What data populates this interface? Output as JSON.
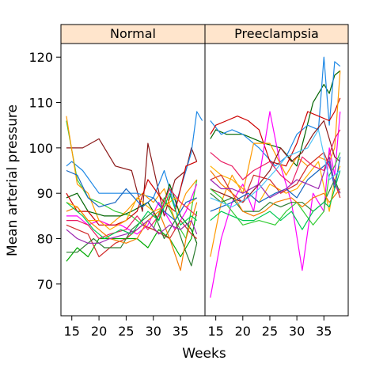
{
  "chart_data": {
    "type": "line",
    "xlabel": "Weeks",
    "ylabel": "Mean arterial pressure",
    "xlim": [
      13,
      39.5
    ],
    "ylim": [
      63,
      123
    ],
    "x_ticks": [
      15,
      20,
      25,
      30,
      35
    ],
    "y_ticks": [
      70,
      80,
      90,
      100,
      110,
      120
    ],
    "strip_color": "#ffe5cc",
    "panels": [
      {
        "name": "Normal",
        "series": [
          {
            "color": "#8b1a1a",
            "x": [
              14,
              17,
              20,
              23,
              26,
              28,
              29,
              32,
              34,
              36,
              37,
              38
            ],
            "y": [
              100,
              100,
              102,
              96,
              95,
              86,
              101,
              85,
              93,
              95,
              100,
              97
            ]
          },
          {
            "color": "#1e88e5",
            "x": [
              14,
              15,
              17,
              20,
              24,
              27,
              30,
              32,
              34,
              36,
              37,
              38,
              39
            ],
            "y": [
              96,
              97,
              95,
              90,
              90,
              90,
              89,
              95,
              87,
              95,
              99,
              108,
              106
            ]
          },
          {
            "color": "#33cc33",
            "x": [
              14,
              16,
              18,
              20,
              23,
              26,
              28,
              30,
              32,
              34,
              36,
              38
            ],
            "y": [
              106,
              93,
              89,
              88,
              86,
              85,
              83,
              82,
              89,
              84,
              80,
              93
            ]
          },
          {
            "color": "#ff9900",
            "x": [
              14,
              16,
              18,
              20,
              22,
              25,
              28,
              30,
              32,
              34,
              36,
              38
            ],
            "y": [
              107,
              92,
              90,
              84,
              83,
              86,
              90,
              88,
              91,
              84,
              90,
              93
            ]
          },
          {
            "color": "#006400",
            "x": [
              14,
              16,
              18,
              21,
              24,
              26,
              29,
              31,
              33,
              35,
              37,
              38
            ],
            "y": [
              89,
              90,
              86,
              85,
              85,
              86,
              88,
              84,
              92,
              85,
              82,
              79
            ]
          },
          {
            "color": "#ff00ff",
            "x": [
              14,
              16,
              18,
              20,
              22,
              24,
              27,
              29,
              31,
              34,
              36,
              38
            ],
            "y": [
              85,
              85,
              83,
              84,
              83,
              83,
              81,
              83,
              88,
              82,
              86,
              92
            ]
          },
          {
            "color": "#cc0000",
            "x": [
              14,
              16,
              18,
              20,
              23,
              25,
              27,
              29,
              32,
              34,
              36,
              38
            ],
            "y": [
              90,
              86,
              86,
              83,
              83,
              84,
              86,
              93,
              88,
              86,
              96,
              97
            ]
          },
          {
            "color": "#ffb000",
            "x": [
              14,
              16,
              18,
              20,
              22,
              25,
              27,
              30,
              32,
              34,
              36,
              38
            ],
            "y": [
              88,
              87,
              84,
              84,
              82,
              84,
              89,
              86,
              87,
              89,
              87,
              89
            ]
          },
          {
            "color": "#00aa00",
            "x": [
              14,
              16,
              18,
              20,
              23,
              25,
              27,
              29,
              31,
              33,
              35,
              37,
              38
            ],
            "y": [
              75,
              78,
              76,
              80,
              80,
              80,
              80,
              78,
              82,
              80,
              76,
              80,
              86
            ]
          },
          {
            "color": "#d12b2b",
            "x": [
              14,
              16,
              18,
              20,
              23,
              25,
              28,
              30,
              33,
              35,
              37,
              38
            ],
            "y": [
              83,
              82,
              81,
              76,
              79,
              80,
              83,
              82,
              80,
              84,
              81,
              80
            ]
          },
          {
            "color": "#1565c0",
            "x": [
              14,
              16,
              18,
              20,
              23,
              25,
              28,
              30,
              32,
              34,
              36,
              38
            ],
            "y": [
              95,
              94,
              89,
              87,
              88,
              91,
              87,
              89,
              86,
              84,
              88,
              89
            ]
          },
          {
            "color": "#e91e63",
            "x": [
              14,
              16,
              18,
              20,
              22,
              25,
              27,
              29,
              31,
              33,
              35,
              37,
              38
            ],
            "y": [
              84,
              84,
              83,
              80,
              81,
              82,
              85,
              82,
              85,
              91,
              88,
              86,
              85
            ]
          },
          {
            "color": "#2e7d32",
            "x": [
              14,
              16,
              19,
              21,
              24,
              26,
              28,
              30,
              32,
              34,
              36,
              37,
              38
            ],
            "y": [
              77,
              77,
              80,
              78,
              78,
              82,
              84,
              86,
              80,
              84,
              77,
              74,
              79
            ]
          },
          {
            "color": "#f57c00",
            "x": [
              14,
              16,
              18,
              20,
              22,
              25,
              27,
              29,
              31,
              33,
              35,
              36,
              38
            ],
            "y": [
              86,
              87,
              84,
              82,
              80,
              79,
              80,
              84,
              86,
              80,
              73,
              80,
              88
            ]
          },
          {
            "color": "#9c27b0",
            "x": [
              14,
              16,
              18,
              20,
              22,
              25,
              27,
              29,
              31,
              33,
              35,
              37,
              38
            ],
            "y": [
              82,
              80,
              79,
              79,
              80,
              81,
              82,
              84,
              81,
              83,
              82,
              84,
              81
            ]
          },
          {
            "color": "#00c853",
            "x": [
              14,
              17,
              19,
              21,
              24,
              26,
              29,
              31,
              33,
              35,
              37,
              38
            ],
            "y": [
              88,
              85,
              82,
              80,
              82,
              81,
              86,
              84,
              90,
              83,
              85,
              84
            ]
          }
        ]
      },
      {
        "name": "Preeclampsia",
        "series": [
          {
            "color": "#006400",
            "x": [
              14,
              15,
              17,
              20,
              24,
              27,
              30,
              33,
              35,
              36,
              37,
              38
            ],
            "y": [
              102,
              104,
              103,
              103,
              101,
              100,
              96,
              110,
              114,
              112,
              116,
              117
            ]
          },
          {
            "color": "#1e88e5",
            "x": [
              14,
              16,
              18,
              20,
              23,
              26,
              28,
              30,
              32,
              34,
              35,
              36,
              37,
              38
            ],
            "y": [
              106,
              103,
              104,
              103,
              100,
              96,
              98,
              103,
              105,
              104,
              120,
              105,
              119,
              118
            ]
          },
          {
            "color": "#cc0000",
            "x": [
              14,
              15,
              17,
              19,
              21,
              23,
              25,
              28,
              30,
              32,
              34,
              36,
              37,
              38
            ],
            "y": [
              103,
              105,
              106,
              107,
              106,
              104,
              97,
              96,
              101,
              108,
              107,
              106,
              108,
              111
            ]
          },
          {
            "color": "#ff00ff",
            "x": [
              14,
              16,
              18,
              20,
              22,
              25,
              27,
              29,
              31,
              33,
              35,
              36,
              37,
              38
            ],
            "y": [
              67,
              80,
              88,
              92,
              86,
              108,
              96,
              88,
              73,
              90,
              86,
              100,
              94,
              108
            ]
          },
          {
            "color": "#ff9900",
            "x": [
              14,
              16,
              18,
              20,
              22,
              25,
              28,
              30,
              32,
              34,
              36,
              37,
              38
            ],
            "y": [
              76,
              88,
              94,
              90,
              101,
              101,
              94,
              98,
              96,
              98,
              97,
              100,
              117
            ]
          },
          {
            "color": "#ffb000",
            "x": [
              14,
              16,
              18,
              21,
              23,
              25,
              28,
              30,
              32,
              34,
              36,
              37,
              38
            ],
            "y": [
              96,
              94,
              93,
              90,
              88,
              92,
              90,
              91,
              94,
              97,
              86,
              93,
              96
            ]
          },
          {
            "color": "#8b1a1a",
            "x": [
              14,
              16,
              18,
              20,
              23,
              25,
              27,
              29,
              31,
              33,
              35,
              37,
              38
            ],
            "y": [
              91,
              90,
              89,
              88,
              92,
              95,
              100,
              97,
              99,
              103,
              106,
              98,
              97
            ]
          },
          {
            "color": "#33cc33",
            "x": [
              14,
              16,
              18,
              20,
              23,
              26,
              28,
              30,
              33,
              35,
              36,
              37,
              38
            ],
            "y": [
              91,
              89,
              86,
              83,
              84,
              83,
              86,
              88,
              83,
              86,
              94,
              96,
              99
            ]
          },
          {
            "color": "#d12b2b",
            "x": [
              14,
              16,
              18,
              20,
              22,
              25,
              27,
              30,
              32,
              34,
              35,
              36,
              38
            ],
            "y": [
              93,
              94,
              90,
              88,
              94,
              93,
              90,
              92,
              96,
              98,
              99,
              96,
              89
            ]
          },
          {
            "color": "#1565c0",
            "x": [
              14,
              16,
              18,
              21,
              23,
              26,
              28,
              30,
              32,
              34,
              36,
              37,
              38
            ],
            "y": [
              86,
              87,
              88,
              90,
              88,
              90,
              91,
              89,
              93,
              95,
              97,
              91,
              98
            ]
          },
          {
            "color": "#e91e63",
            "x": [
              14,
              16,
              18,
              20,
              22,
              25,
              27,
              29,
              31,
              33,
              35,
              37,
              38
            ],
            "y": [
              99,
              97,
              96,
              93,
              95,
              97,
              94,
              92,
              98,
              96,
              95,
              102,
              104
            ]
          },
          {
            "color": "#2e7d32",
            "x": [
              14,
              16,
              18,
              20,
              23,
              25,
              27,
              29,
              31,
              33,
              35,
              37,
              38
            ],
            "y": [
              90,
              88,
              89,
              86,
              86,
              88,
              87,
              88,
              88,
              86,
              88,
              93,
              90
            ]
          },
          {
            "color": "#f57c00",
            "x": [
              14,
              16,
              18,
              20,
              22,
              24,
              26,
              29,
              31,
              33,
              35,
              36,
              38
            ],
            "y": [
              95,
              92,
              90,
              86,
              85,
              86,
              88,
              89,
              87,
              89,
              90,
              88,
              91
            ]
          },
          {
            "color": "#9c27b0",
            "x": [
              14,
              16,
              18,
              20,
              23,
              25,
              28,
              30,
              32,
              34,
              36,
              37,
              38
            ],
            "y": [
              93,
              91,
              91,
              90,
              92,
              89,
              91,
              93,
              92,
              91,
              98,
              92,
              90
            ]
          },
          {
            "color": "#00c853",
            "x": [
              14,
              16,
              18,
              20,
              22,
              25,
              27,
              29,
              31,
              33,
              35,
              36,
              38
            ],
            "y": [
              84,
              86,
              85,
              84,
              84,
              86,
              84,
              86,
              82,
              86,
              88,
              87,
              95
            ]
          },
          {
            "color": "#4fc3f7",
            "x": [
              14,
              16,
              18,
              21,
              23,
              26,
              28,
              30,
              32,
              34,
              36,
              38
            ],
            "y": [
              89,
              88,
              87,
              89,
              91,
              95,
              98,
              99,
              100,
              104,
              93,
              95
            ]
          }
        ]
      }
    ]
  }
}
